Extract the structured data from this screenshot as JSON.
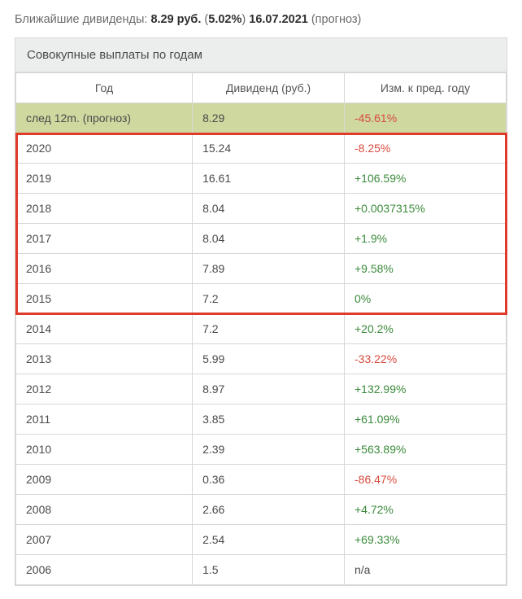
{
  "summary": {
    "prefix": "Ближайшие дивиденды: ",
    "amount": "8.29 руб.",
    "openParen": " (",
    "yield": "5.02%",
    "closeParen": ") ",
    "date": "16.07.2021",
    "suffix": " (прогноз)"
  },
  "table": {
    "title": "Совокупные выплаты по годам",
    "columns": [
      "Год",
      "Дивиденд (руб.)",
      "Изм. к пред. году"
    ],
    "rows": [
      {
        "year": "след 12m. (прогноз)",
        "div": "8.29",
        "chg": "-45.61%",
        "cls": "neg",
        "hl": true
      },
      {
        "year": "2020",
        "div": "15.24",
        "chg": "-8.25%",
        "cls": "neg"
      },
      {
        "year": "2019",
        "div": "16.61",
        "chg": "+106.59%",
        "cls": "pos"
      },
      {
        "year": "2018",
        "div": "8.04",
        "chg": "+0.0037315%",
        "cls": "pos"
      },
      {
        "year": "2017",
        "div": "8.04",
        "chg": "+1.9%",
        "cls": "pos"
      },
      {
        "year": "2016",
        "div": "7.89",
        "chg": "+9.58%",
        "cls": "pos"
      },
      {
        "year": "2015",
        "div": "7.2",
        "chg": "0%",
        "cls": "pos"
      },
      {
        "year": "2014",
        "div": "7.2",
        "chg": "+20.2%",
        "cls": "pos"
      },
      {
        "year": "2013",
        "div": "5.99",
        "chg": "-33.22%",
        "cls": "neg"
      },
      {
        "year": "2012",
        "div": "8.97",
        "chg": "+132.99%",
        "cls": "pos"
      },
      {
        "year": "2011",
        "div": "3.85",
        "chg": "+61.09%",
        "cls": "pos"
      },
      {
        "year": "2010",
        "div": "2.39",
        "chg": "+563.89%",
        "cls": "pos"
      },
      {
        "year": "2009",
        "div": "0.36",
        "chg": "-86.47%",
        "cls": "neg"
      },
      {
        "year": "2008",
        "div": "2.66",
        "chg": "+4.72%",
        "cls": "pos"
      },
      {
        "year": "2007",
        "div": "2.54",
        "chg": "+69.33%",
        "cls": "pos"
      },
      {
        "year": "2006",
        "div": "1.5",
        "chg": "n/a",
        "cls": "neu"
      }
    ],
    "highlight_box": {
      "color": "#e03a2a",
      "from_row": 1,
      "to_row": 6
    }
  }
}
